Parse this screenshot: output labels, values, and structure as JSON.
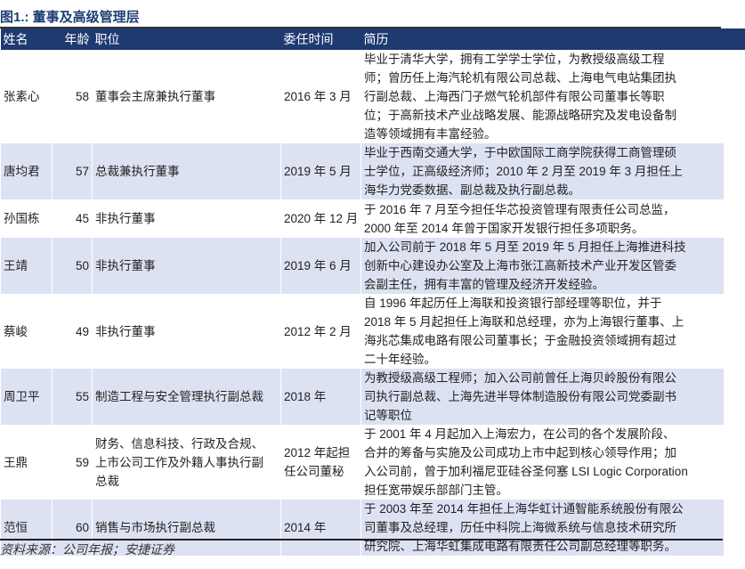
{
  "title": "图1.: 董事及高级管理层",
  "headers": [
    "姓名",
    "年龄",
    "职位",
    "委任时间",
    "简历"
  ],
  "rows": [
    {
      "name": "张素心",
      "age": "58",
      "position": [
        "董事会主席兼执行董事"
      ],
      "appointed": [
        "2016 年 3 月"
      ],
      "bio": [
        "毕业于清华大学，拥有工学学士学位，为教授级高级工程",
        "师；曾历任上海汽轮机有限公司总裁、上海电气电站集团执",
        "行副总裁、上海西门子燃气轮机部件有限公司董事长等职",
        "位；于高新技术产业战略发展、能源战略研究及发电设备制",
        "造等领域拥有丰富经验。"
      ]
    },
    {
      "name": "唐均君",
      "age": "57",
      "position": [
        "总裁兼执行董事"
      ],
      "appointed": [
        "2019 年 5 月"
      ],
      "bio": [
        "毕业于西南交通大学，于中欧国际工商学院获得工商管理硕",
        "士学位，正高级经济师；2010 年 2 月至 2019 年 3 月担任上",
        "海华力党委数据、副总裁及执行副总裁。"
      ]
    },
    {
      "name": "孙国栋",
      "age": "45",
      "position": [
        "非执行董事"
      ],
      "appointed": [
        "2020 年 12 月"
      ],
      "bio": [
        "于 2016 年 7 月至今担任华芯投资管理有限责任公司总监，",
        "2000 年至 2014 年曾于国家开发银行担任多项职务。"
      ]
    },
    {
      "name": "王靖",
      "age": "50",
      "position": [
        "非执行董事"
      ],
      "appointed": [
        "2019 年 6 月"
      ],
      "bio": [
        "加入公司前于 2018 年 5 月至 2019 年 5 月担任上海推进科技",
        "创新中心建设办公室及上海市张江高新技术产业开发区管委",
        "会副主任，拥有丰富的管理及经济开发经验。"
      ]
    },
    {
      "name": "蔡峻",
      "age": "49",
      "position": [
        "非执行董事"
      ],
      "appointed": [
        "2012 年 2 月"
      ],
      "bio": [
        "自 1996 年起历任上海联和投资银行部经理等职位，并于",
        "2018 年 5 月起担任上海联和总经理，亦为上海银行董事、上",
        "海兆芯集成电路有限公司董事长；于金融投资领域拥有超过",
        "二十年经验。"
      ]
    },
    {
      "name": "周卫平",
      "age": "55",
      "position": [
        "制造工程与安全管理执行副总裁"
      ],
      "appointed": [
        "2018 年"
      ],
      "bio": [
        "为教授级高级工程师；加入公司前曾任上海贝岭股份有限公",
        "司执行副总裁、上海先进半导体制造股份有限公司党委副书",
        "记等职位"
      ]
    },
    {
      "name": "王鼎",
      "age": "59",
      "position": [
        "财务、信息科技、行政及合规、",
        "上市公司工作及外籍人事执行副",
        "总裁"
      ],
      "appointed": [
        "2012 年起担",
        "任公司董秘"
      ],
      "bio": [
        "于 2001 年 4 月起加入上海宏力，在公司的各个发展阶段、",
        "合并的筹备与实施及公司成功上市中起到核心领导作用；加",
        "入公司前，曾于加利福尼亚硅谷圣何塞 LSI Logic Corporation",
        "担任宽带娱乐部部门主管。"
      ]
    },
    {
      "name": "范恒",
      "age": "60",
      "position": [
        "销售与市场执行副总裁"
      ],
      "appointed": [
        "2014 年"
      ],
      "bio": [
        "于 2003 年至 2014 年担任上海华虹计通智能系统股份有限公",
        "司董事及总经理，历任中科院上海微系统与信息技术研究所",
        "研究院、上海华虹集成电路有限责任公司副总经理等职务。"
      ]
    }
  ],
  "source": "资料来源：公司年报；安捷证券",
  "colors": {
    "header_bg": "#1e3a70",
    "alt_row_bg": "#dde2f3",
    "title": "#1f3d73"
  }
}
